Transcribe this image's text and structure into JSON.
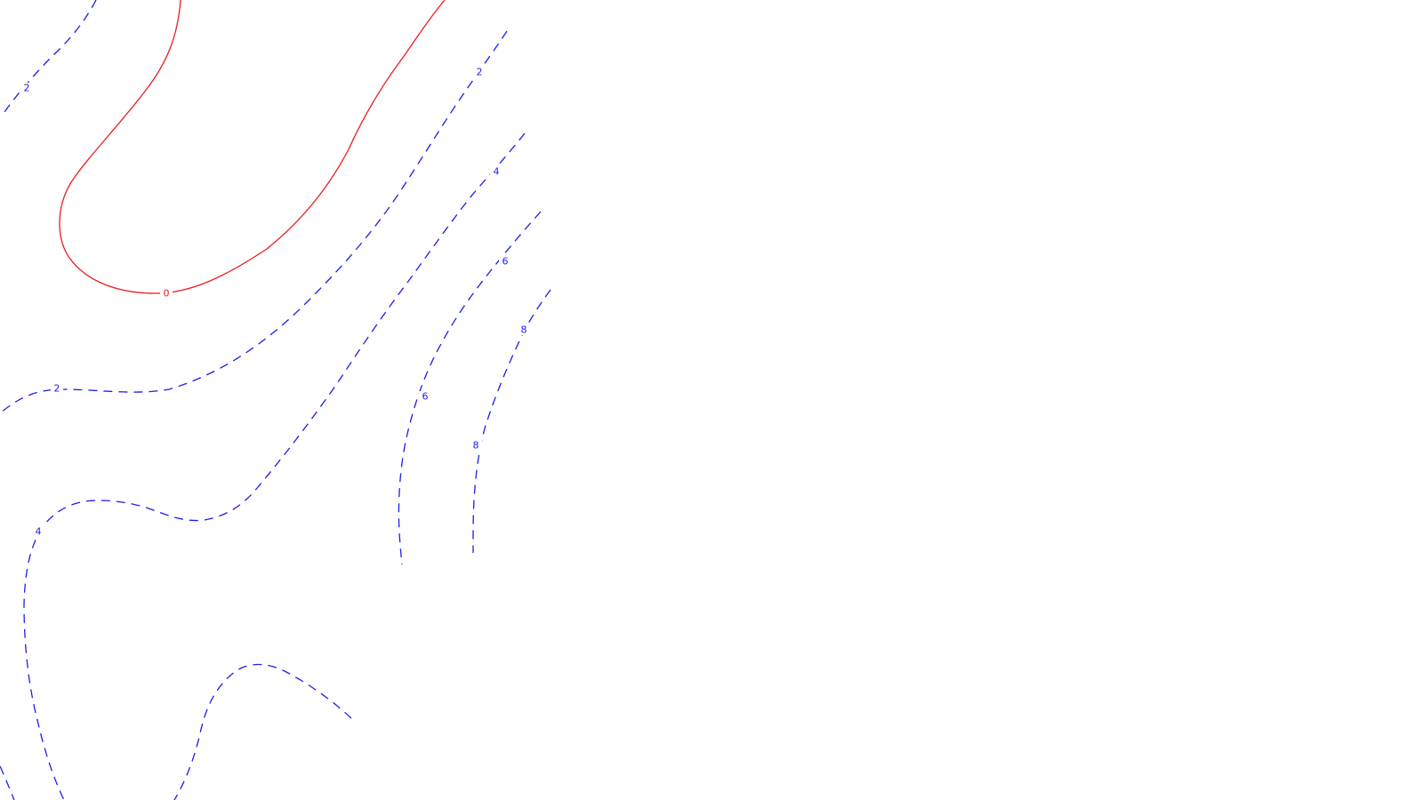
{
  "map": {
    "colors": {
      "zero_contour": "#ee1c1c",
      "positive_contour": "#1c1cee",
      "background": "#ffffff"
    },
    "contour_levels": [
      {
        "value": 0,
        "label": "0",
        "line_style": "solid",
        "color": "#ee1c1c"
      },
      {
        "value": 2,
        "label": "2",
        "line_style": "dashed",
        "color": "#1c1cee"
      },
      {
        "value": 4,
        "label": "4",
        "line_style": "dashed",
        "color": "#1c1cee"
      },
      {
        "value": 6,
        "label": "6",
        "line_style": "dashed",
        "color": "#1c1cee"
      },
      {
        "value": 8,
        "label": "8",
        "line_style": "dashed",
        "color": "#1c1cee"
      }
    ],
    "contours": [
      {
        "id": "contour-0-main",
        "level_label": "0"
      },
      {
        "id": "contour-2-top-left",
        "level_label": "2"
      },
      {
        "id": "contour-2-middle",
        "level_label": "2"
      },
      {
        "id": "contour-4-main",
        "level_label": "4"
      },
      {
        "id": "contour-4-bottom",
        "level_label": "4"
      },
      {
        "id": "contour-6",
        "level_label": "6"
      },
      {
        "id": "contour-8",
        "level_label": "8"
      }
    ]
  }
}
